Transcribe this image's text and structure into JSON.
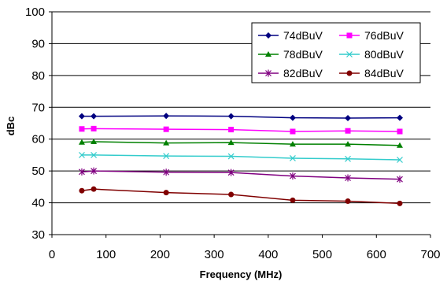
{
  "chart_data": {
    "type": "line",
    "title": "",
    "xlabel": "Frequency (MHz)",
    "ylabel": "dBc",
    "xlim": [
      0,
      700
    ],
    "ylim": [
      30,
      100
    ],
    "xticks": [
      0,
      100,
      200,
      300,
      400,
      500,
      600,
      700
    ],
    "yticks": [
      30,
      40,
      50,
      60,
      70,
      80,
      90,
      100
    ],
    "grid": "horizontal",
    "legend": "top-right",
    "x": [
      55.25,
      77.25,
      211.25,
      331.25,
      445.25,
      547.25,
      643.25
    ],
    "series": [
      {
        "name": "74dBuV",
        "color": "#000080",
        "marker": "diamond",
        "values": [
          67.2,
          67.2,
          67.3,
          67.2,
          66.7,
          66.6,
          66.7
        ]
      },
      {
        "name": "76dBuV",
        "color": "#ff00ff",
        "marker": "square",
        "values": [
          63.2,
          63.3,
          63.1,
          63.0,
          62.4,
          62.6,
          62.4
        ]
      },
      {
        "name": "78dBuV",
        "color": "#008000",
        "marker": "triangle",
        "values": [
          59.0,
          59.2,
          58.8,
          58.9,
          58.4,
          58.4,
          58.0
        ]
      },
      {
        "name": "80dBuV",
        "color": "#33cccc",
        "marker": "x",
        "values": [
          55.0,
          55.0,
          54.7,
          54.6,
          54.0,
          53.8,
          53.5
        ]
      },
      {
        "name": "82dBuV",
        "color": "#800080",
        "marker": "star",
        "values": [
          49.7,
          50.0,
          49.6,
          49.5,
          48.4,
          47.8,
          47.4
        ]
      },
      {
        "name": "84dBuV",
        "color": "#800000",
        "marker": "circle",
        "values": [
          43.8,
          44.3,
          43.2,
          42.6,
          40.8,
          40.5,
          39.8
        ]
      }
    ]
  }
}
